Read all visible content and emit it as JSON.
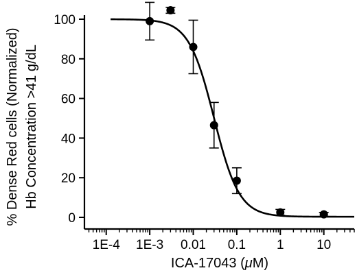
{
  "chart_data": {
    "type": "scatter",
    "x_scale": "log",
    "x_ticks": [
      "1E-4",
      "1E-3",
      "0.01",
      "0.1",
      "1",
      "10"
    ],
    "x_tick_values": [
      0.0001,
      0.001,
      0.01,
      0.1,
      1,
      10
    ],
    "y_ticks": [
      "0",
      "20",
      "40",
      "60",
      "80",
      "100"
    ],
    "y_tick_values": [
      0,
      20,
      40,
      60,
      80,
      100
    ],
    "xlim": [
      3.16e-05,
      50
    ],
    "ylim": [
      0,
      105
    ],
    "xlabel_prefix": "ICA-17043 (",
    "xlabel_mu": "μ",
    "xlabel_suffix": "M)",
    "ylabel_line1": "% Dense Red cells (Normalized)",
    "ylabel_line2": "Hb Concentration >41 g/dL",
    "grid": false,
    "points": [
      {
        "x": 0.001,
        "y": 99,
        "err": 9.5
      },
      {
        "x": 0.003,
        "y": 104.5,
        "err": 1.5
      },
      {
        "x": 0.01,
        "y": 86,
        "err": 13.5
      },
      {
        "x": 0.03,
        "y": 46.5,
        "err": 11.5
      },
      {
        "x": 0.1,
        "y": 18.5,
        "err": 6.5
      },
      {
        "x": 1,
        "y": 2.5,
        "err": 1.5
      },
      {
        "x": 10,
        "y": 1.5,
        "err": 1.0
      }
    ],
    "fit_curve": {
      "model": "sigmoid",
      "top": 100,
      "bottom": 0.3,
      "ic50": 0.03,
      "hill": 1.5
    }
  }
}
